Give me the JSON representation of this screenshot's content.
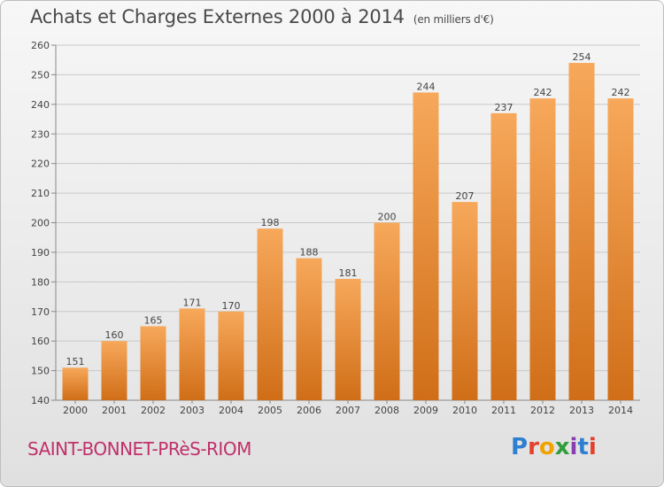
{
  "title": "Achats et Charges Externes 2000 à 2014",
  "subtitle": "(en milliers d'€)",
  "commune": "SAINT-BONNET-PRèS-RIOM",
  "logo": "Proxiti",
  "colors": {
    "bar_top": "#f7a85a",
    "bar_bottom": "#d06e18",
    "commune_text": "#c0306a",
    "title_text": "#4a4a4a",
    "grid": "#c8c8c8",
    "logo": [
      "#2f7fd0",
      "#e4402c",
      "#f0a300",
      "#2f9d3a",
      "#8a3fb0",
      "#2f7fd0",
      "#e4402c"
    ]
  },
  "chart_data": {
    "type": "bar",
    "title": "Achats et Charges Externes 2000 à 2014",
    "subtitle": "(en milliers d'€)",
    "categories": [
      "2000",
      "2001",
      "2002",
      "2003",
      "2004",
      "2005",
      "2006",
      "2007",
      "2008",
      "2009",
      "2010",
      "2011",
      "2012",
      "2013",
      "2014"
    ],
    "values": [
      151,
      160,
      165,
      171,
      170,
      198,
      188,
      181,
      200,
      244,
      207,
      237,
      242,
      254,
      242
    ],
    "ylim": [
      140,
      260
    ],
    "yticks": [
      140,
      150,
      160,
      170,
      180,
      190,
      200,
      210,
      220,
      230,
      240,
      250,
      260
    ],
    "grid": true,
    "data_labels": true
  }
}
